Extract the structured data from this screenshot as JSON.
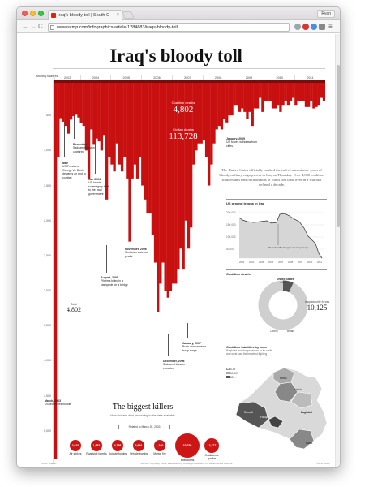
{
  "browser": {
    "tab_title": "Iraq's bloody toll | South C",
    "tab_close": "×",
    "profile": "Ryan",
    "url": "www.scmp.com/infographics/article/1284683/iraqs-bloody-toll",
    "back": "←",
    "forward": "→",
    "reload": "C",
    "menu": "≡"
  },
  "page": {
    "headline": "Iraq's bloody toll",
    "y_axis_title": "Monthly fatalities",
    "years": [
      "2003",
      "2004",
      "2005",
      "2006",
      "2007",
      "2008",
      "2009",
      "2010",
      "2011"
    ],
    "y_ticks": [
      "500",
      "1,000",
      "1,500",
      "2,000",
      "2,500",
      "3,000",
      "3,500",
      "4,000",
      "4,500",
      "5,000",
      "5,500"
    ],
    "coalition": {
      "label": "Coalition deaths",
      "value": "4,802"
    },
    "civilian": {
      "label": "Civilian deaths",
      "value": "113,728"
    },
    "annotations": {
      "march_2003": {
        "date": "March, 2003",
        "text": "US-led forces invade"
      },
      "may": {
        "date": "May",
        "text": "US President George W. Bush declares an end to combat"
      },
      "dec": {
        "date": "December",
        "text": "Saddam Hussein captured"
      },
      "jun_2004": {
        "date": "Jun 2004",
        "text": "US hands sovereignty back to the Iraqi government"
      },
      "aug_2005": {
        "date": "August, 2005",
        "text": "Pilgrims killed in a stampede on a bridge"
      },
      "nov_2006": {
        "date": "November, 2006",
        "text": "Sectarian violence peaks"
      },
      "dec_2006": {
        "date": "December, 2006",
        "text": "Saddam Hussein executed"
      },
      "jan_2007": {
        "date": "January, 2007",
        "text": "Bush announces a troop surge"
      },
      "jan_2009": {
        "date": "January, 2009",
        "text": "US forces withdraw from cities"
      }
    },
    "intro": "The United States officially marked the end of almost nine years of bloody military engagement in Iraq on Thursday. Over 4,800 coalition soldiers and tens of thousands of Iraqis lost their lives in a war that defined a decade.",
    "troops": {
      "title": "US ground troops in Iraq",
      "y_ticks": [
        "200,000",
        "150,000",
        "100,000",
        "50,000"
      ],
      "x_ticks": [
        "2003",
        "2004",
        "2005",
        "2006",
        "2007",
        "2008",
        "2009",
        "2010",
        "2011"
      ],
      "note": "President Bush approves troop surge"
    },
    "deaths": {
      "title": "Coalition deaths",
      "us_label": "United States",
      "us_value": "4,484",
      "total_label": "Total",
      "total_value": "4,802",
      "others_label": "Others",
      "britain_label": "Britain",
      "iraqi_value": "10,125",
      "iraqi_label": "Iraqi security forces"
    },
    "map": {
      "title": "Coalition fatalities by area",
      "sub": "Baghdad and the provinces to its north and west saw the heaviest fighting",
      "legend": [
        "0-49",
        "50-499",
        "500+"
      ],
      "cities": [
        "Mosul",
        "Kirkuk",
        "Baghdad",
        "Fallujah",
        "Ramadi",
        "Basra"
      ]
    },
    "killers": {
      "title": "The biggest killers",
      "sub": "How civilians died, according to the data available",
      "note": "Related to March 20, 2003",
      "items": [
        {
          "label": "Air strikes",
          "value": "2,632"
        },
        {
          "label": "Roadside bombs",
          "value": "1,862"
        },
        {
          "label": "Suicide bombs",
          "value": "4,758"
        },
        {
          "label": "Vehicle bombs",
          "value": "3,654"
        },
        {
          "label": "Mortar fire",
          "value": "1,100"
        },
        {
          "label": "Executions",
          "value": "32,756"
        },
        {
          "label": "Small arms gunfire",
          "value": "12,477"
        }
      ]
    },
    "footer_left": "SCMP Graphic",
    "footer_mid": "Sources: Iraq Body Count, icasualties.org, Brookings Institution, US Department of Defense",
    "footer_right": "©2011 SCMP"
  },
  "colors": {
    "bar_red": "#c91010",
    "dark_red": "#7a0c0c",
    "bubble_red": "#cc1616"
  },
  "chart_data": {
    "type": "bar",
    "title": "Iraq's bloody toll",
    "ylabel": "Monthly fatalities",
    "ylim": [
      0,
      5500
    ],
    "x": [
      "2003-03",
      "2003-04",
      "2003-05",
      "2003-06",
      "2003-07",
      "2003-08",
      "2003-09",
      "2003-10",
      "2003-11",
      "2003-12",
      "2004-01",
      "2004-02",
      "2004-03",
      "2004-04",
      "2004-05",
      "2004-06",
      "2004-07",
      "2004-08",
      "2004-09",
      "2004-10",
      "2004-11",
      "2004-12",
      "2005-01",
      "2005-02",
      "2005-03",
      "2005-04",
      "2005-05",
      "2005-06",
      "2005-07",
      "2005-08",
      "2005-09",
      "2005-10",
      "2005-11",
      "2005-12",
      "2006-01",
      "2006-02",
      "2006-03",
      "2006-04",
      "2006-05",
      "2006-06",
      "2006-07",
      "2006-08",
      "2006-09",
      "2006-10",
      "2006-11",
      "2006-12",
      "2007-01",
      "2007-02",
      "2007-03",
      "2007-04",
      "2007-05",
      "2007-06",
      "2007-07",
      "2007-08",
      "2007-09",
      "2007-10",
      "2007-11",
      "2007-12",
      "2008-01",
      "2008-02",
      "2008-03",
      "2008-04",
      "2008-05",
      "2008-06",
      "2008-07",
      "2008-08",
      "2008-09",
      "2008-10",
      "2008-11",
      "2008-12",
      "2009-01",
      "2009-02",
      "2009-03",
      "2009-04",
      "2009-05",
      "2009-06",
      "2009-07",
      "2009-08",
      "2009-09",
      "2009-10",
      "2009-11",
      "2009-12",
      "2010-01",
      "2010-02",
      "2010-03",
      "2010-04",
      "2010-05",
      "2010-06",
      "2010-07",
      "2010-08",
      "2010-09",
      "2010-10",
      "2010-11",
      "2010-12",
      "2011-01",
      "2011-02",
      "2011-03",
      "2011-04",
      "2011-05",
      "2011-06",
      "2011-07",
      "2011-08",
      "2011-09",
      "2011-10",
      "2011-11",
      "2011-12"
    ],
    "series": [
      {
        "name": "Civilian deaths",
        "values": [
          5400,
          1100,
          540,
          590,
          650,
          760,
          560,
          510,
          490,
          530,
          610,
          650,
          1000,
          1400,
          700,
          920,
          830,
          870,
          1000,
          780,
          1700,
          1100,
          1200,
          1300,
          900,
          1200,
          1300,
          1100,
          1400,
          2300,
          1400,
          1200,
          1400,
          1100,
          1500,
          1700,
          1900,
          1900,
          2200,
          2600,
          3300,
          2900,
          2600,
          3000,
          3100,
          3000,
          2900,
          2900,
          2700,
          2400,
          2700,
          2000,
          2400,
          2100,
          1200,
          1000,
          900,
          900,
          850,
          1100,
          1500,
          1200,
          900,
          700,
          650,
          700,
          550,
          600,
          500,
          500,
          350,
          350,
          450,
          400,
          450,
          550,
          450,
          650,
          400,
          400,
          250,
          450,
          300,
          300,
          300,
          400,
          400,
          350,
          450,
          350,
          300,
          350,
          300,
          250,
          350,
          300,
          300,
          300,
          380,
          380,
          300,
          400,
          380,
          350,
          250,
          300
        ]
      }
    ],
    "grid": false
  }
}
